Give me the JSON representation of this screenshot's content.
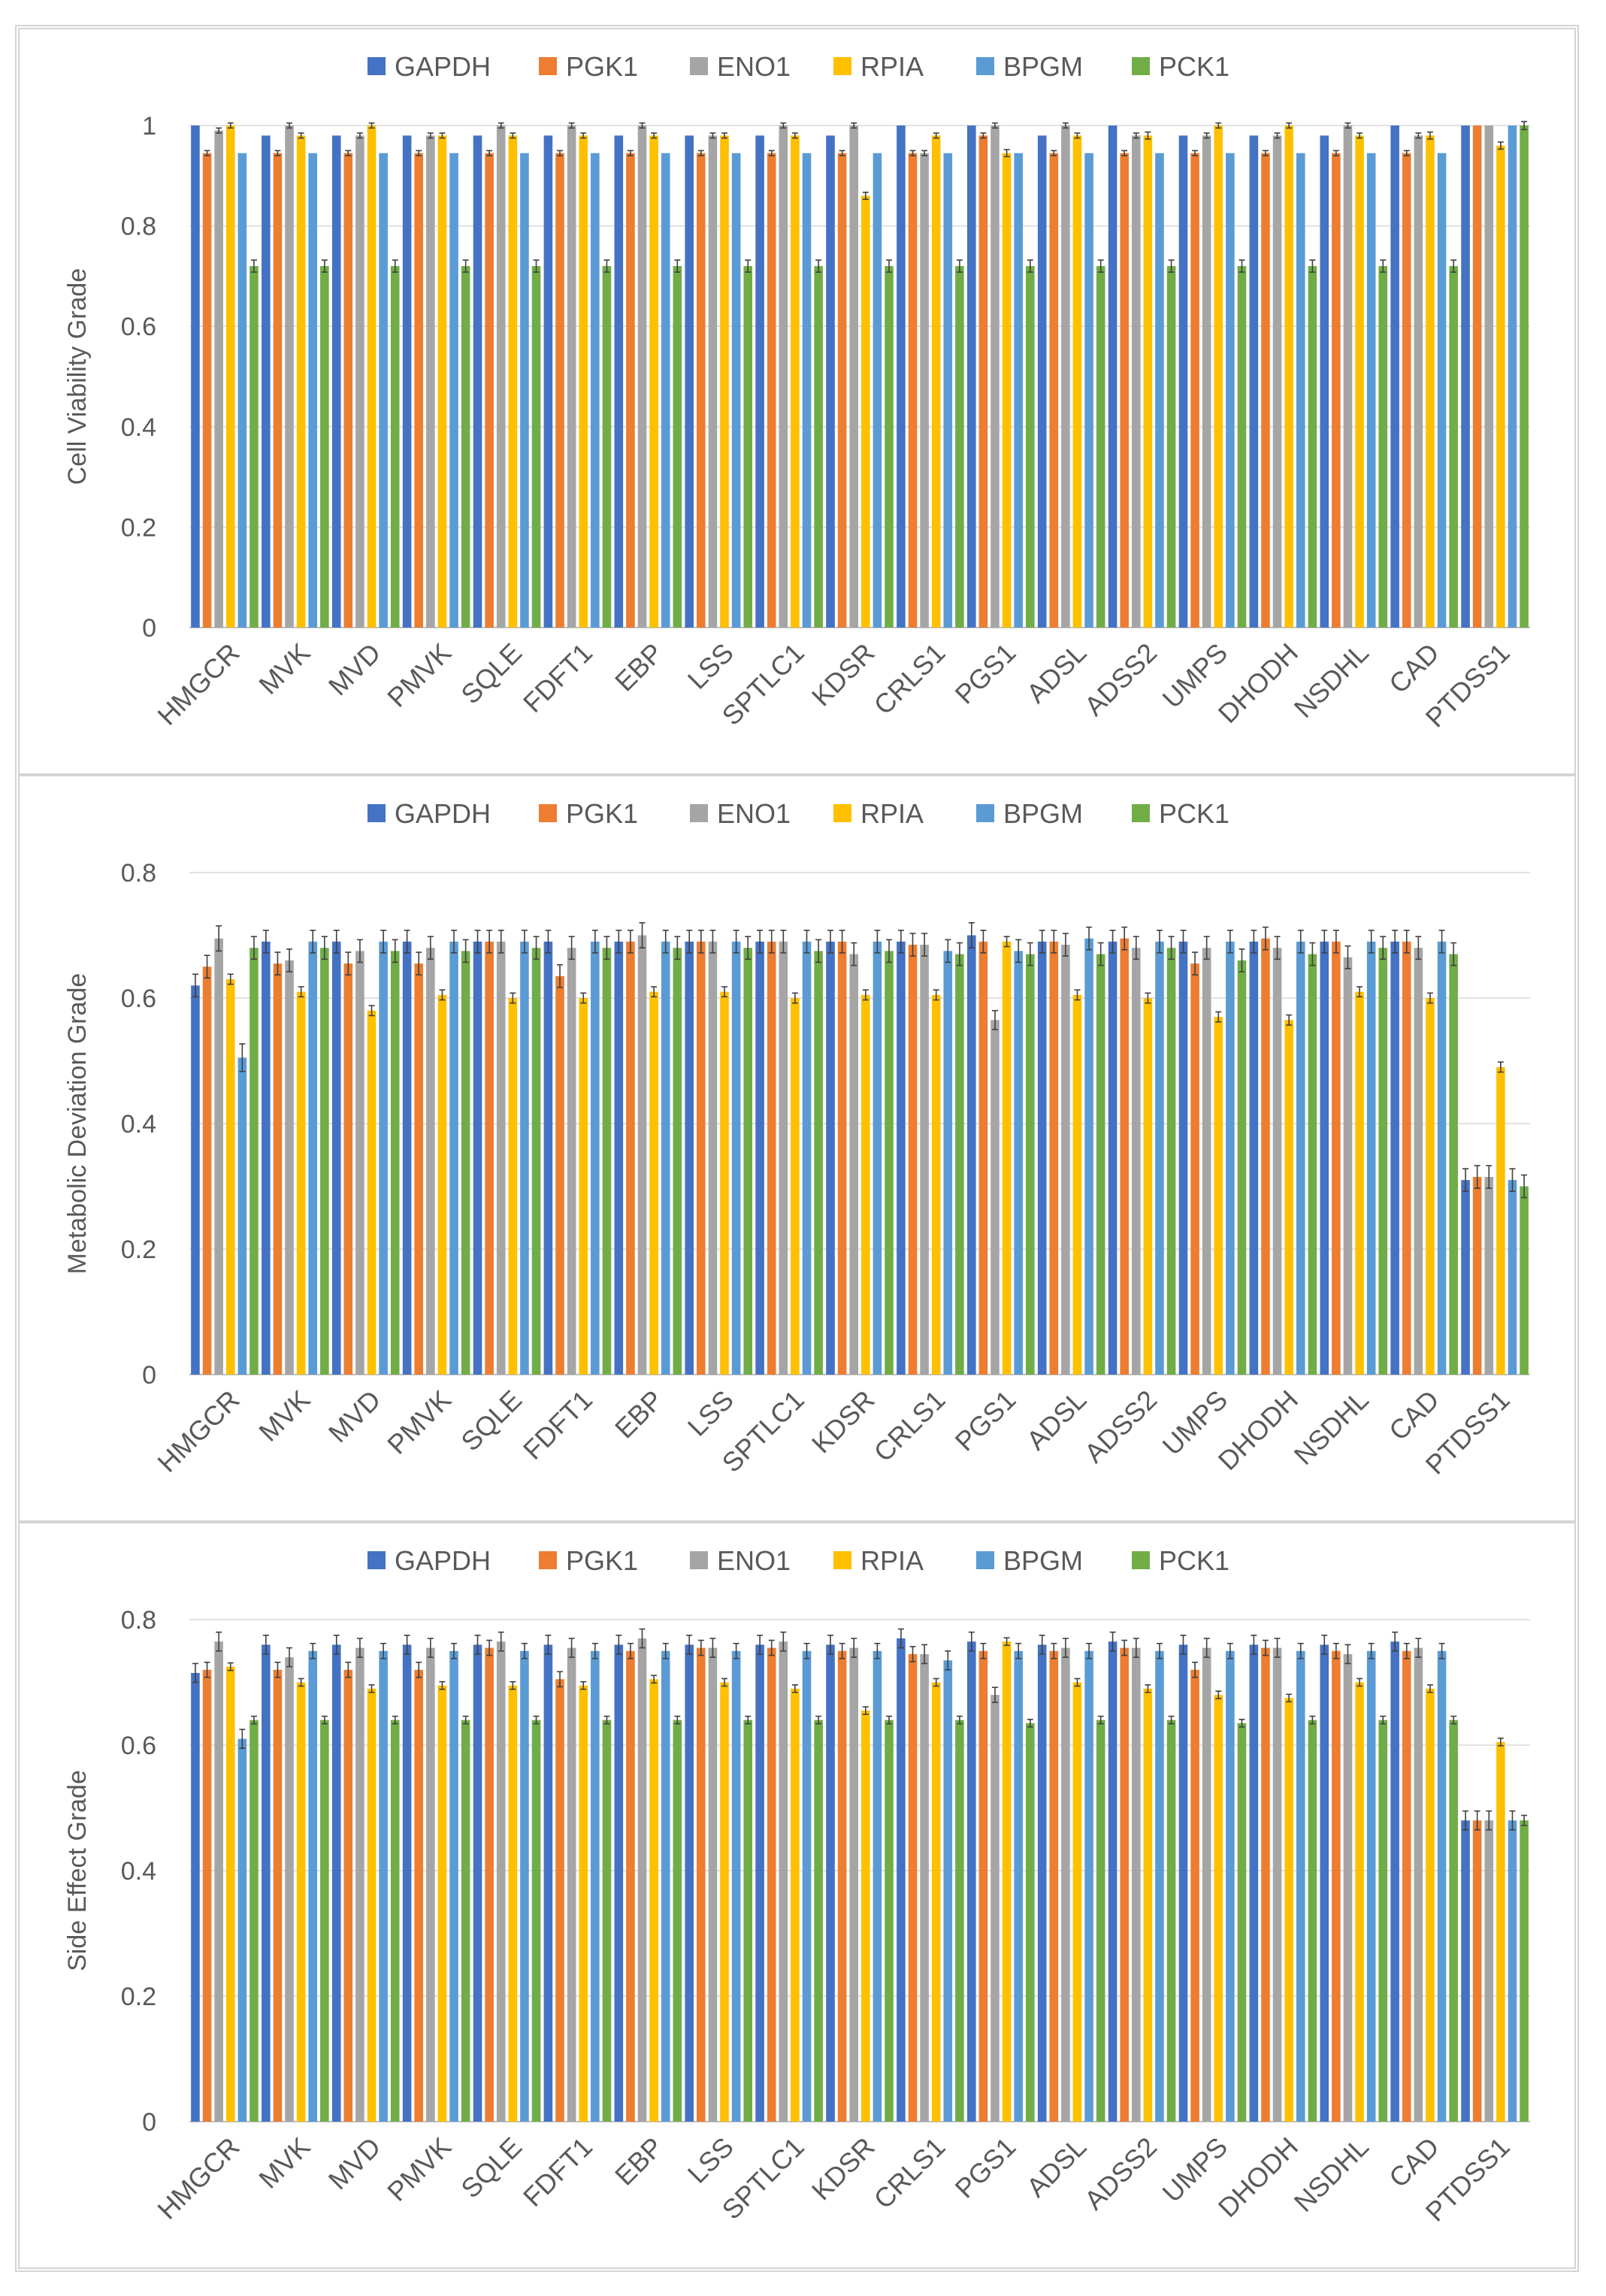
{
  "colors": {
    "GAPDH": "#4472C4",
    "PGK1": "#ED7D31",
    "ENO1": "#A5A5A5",
    "RPIA": "#FFC000",
    "BPGM": "#5B9BD5",
    "PCK1": "#70AD47",
    "grid": "#d9d9d9",
    "axis_text": "#595959"
  },
  "chart_data": [
    {
      "type": "bar",
      "title": "",
      "xlabel": "",
      "ylabel": "Cell Viability Grade",
      "ylim": [
        0,
        1
      ],
      "yticks": [
        0,
        0.2,
        0.4,
        0.6,
        0.8,
        1
      ],
      "ytick_labels": [
        "0",
        "0.2",
        "0.4",
        "0.6",
        "0.8",
        "1"
      ],
      "legend_position": "top-center",
      "grid": true,
      "categories": [
        "HMGCR",
        "MVK",
        "MVD",
        "PMVK",
        "SQLE",
        "FDFT1",
        "EBP",
        "LSS",
        "SPTLC1",
        "KDSR",
        "CRLS1",
        "PGS1",
        "ADSL",
        "ADSS2",
        "UMPS",
        "DHODH",
        "NSDHL",
        "CAD",
        "PTDSS1"
      ],
      "series": [
        {
          "name": "GAPDH",
          "values": [
            1,
            0.98,
            0.98,
            0.98,
            0.98,
            0.98,
            0.98,
            0.98,
            0.98,
            0.98,
            1,
            1,
            0.98,
            1,
            0.98,
            0.98,
            0.98,
            1,
            1
          ],
          "errors": [
            0,
            0,
            0,
            0,
            0,
            0,
            0,
            0,
            0,
            0,
            0,
            0,
            0,
            0,
            0,
            0,
            0,
            0,
            0
          ]
        },
        {
          "name": "PGK1",
          "values": [
            0.945,
            0.945,
            0.945,
            0.945,
            0.945,
            0.945,
            0.945,
            0.945,
            0.945,
            0.945,
            0.945,
            0.98,
            0.945,
            0.945,
            0.945,
            0.945,
            0.945,
            0.945,
            1
          ],
          "errors": [
            0.005,
            0.005,
            0.005,
            0.005,
            0.005,
            0.005,
            0.005,
            0.005,
            0.005,
            0.005,
            0.005,
            0.005,
            0.005,
            0.005,
            0.005,
            0.005,
            0.005,
            0.005,
            0
          ]
        },
        {
          "name": "ENO1",
          "values": [
            0.99,
            1,
            0.98,
            0.98,
            1,
            1,
            1,
            0.98,
            1,
            1,
            0.945,
            1,
            1,
            0.98,
            0.98,
            0.98,
            1,
            0.98,
            1
          ],
          "errors": [
            0.005,
            0.005,
            0.005,
            0.005,
            0.005,
            0.005,
            0.005,
            0.005,
            0.005,
            0.005,
            0.005,
            0.005,
            0.005,
            0.005,
            0.005,
            0.005,
            0.005,
            0.005,
            0
          ]
        },
        {
          "name": "RPIA",
          "values": [
            1,
            0.98,
            1,
            0.98,
            0.98,
            0.98,
            0.98,
            0.98,
            0.98,
            0.86,
            0.98,
            0.945,
            0.98,
            0.98,
            1,
            1,
            0.98,
            0.98,
            0.96
          ],
          "errors": [
            0.005,
            0.005,
            0.005,
            0.005,
            0.005,
            0.005,
            0.005,
            0.005,
            0.005,
            0.007,
            0.005,
            0.007,
            0.005,
            0.007,
            0.005,
            0.005,
            0.005,
            0.007,
            0.007
          ]
        },
        {
          "name": "BPGM",
          "values": [
            0.945,
            0.945,
            0.945,
            0.945,
            0.945,
            0.945,
            0.945,
            0.945,
            0.945,
            0.945,
            0.945,
            0.945,
            0.945,
            0.945,
            0.945,
            0.945,
            0.945,
            0.945,
            1
          ],
          "errors": [
            0,
            0,
            0,
            0,
            0,
            0,
            0,
            0,
            0,
            0,
            0,
            0,
            0,
            0,
            0,
            0,
            0,
            0,
            0
          ]
        },
        {
          "name": "PCK1",
          "values": [
            0.72,
            0.72,
            0.72,
            0.72,
            0.72,
            0.72,
            0.72,
            0.72,
            0.72,
            0.72,
            0.72,
            0.72,
            0.72,
            0.72,
            0.72,
            0.72,
            0.72,
            0.72,
            1
          ],
          "errors": [
            0.012,
            0.012,
            0.012,
            0.012,
            0.012,
            0.012,
            0.012,
            0.012,
            0.012,
            0.012,
            0.012,
            0.012,
            0.012,
            0.012,
            0.012,
            0.012,
            0.012,
            0.012,
            0.008
          ]
        }
      ]
    },
    {
      "type": "bar",
      "title": "",
      "xlabel": "",
      "ylabel": "Metabolic Deviation Grade",
      "ylim": [
        0,
        0.8
      ],
      "yticks": [
        0,
        0.2,
        0.4,
        0.6,
        0.8
      ],
      "ytick_labels": [
        "0",
        "0.2",
        "0.4",
        "0.6",
        "0.8"
      ],
      "legend_position": "top-center",
      "grid": true,
      "categories": [
        "HMGCR",
        "MVK",
        "MVD",
        "PMVK",
        "SQLE",
        "FDFT1",
        "EBP",
        "LSS",
        "SPTLC1",
        "KDSR",
        "CRLS1",
        "PGS1",
        "ADSL",
        "ADSS2",
        "UMPS",
        "DHODH",
        "NSDHL",
        "CAD",
        "PTDSS1"
      ],
      "series": [
        {
          "name": "GAPDH",
          "values": [
            0.62,
            0.69,
            0.69,
            0.69,
            0.69,
            0.69,
            0.69,
            0.69,
            0.69,
            0.69,
            0.69,
            0.7,
            0.69,
            0.69,
            0.69,
            0.69,
            0.69,
            0.69,
            0.31
          ],
          "errors": [
            0.018,
            0.018,
            0.018,
            0.018,
            0.018,
            0.018,
            0.018,
            0.018,
            0.018,
            0.018,
            0.018,
            0.02,
            0.018,
            0.018,
            0.018,
            0.018,
            0.018,
            0.018,
            0.018
          ]
        },
        {
          "name": "PGK1",
          "values": [
            0.65,
            0.655,
            0.655,
            0.655,
            0.69,
            0.635,
            0.69,
            0.69,
            0.69,
            0.69,
            0.685,
            0.69,
            0.69,
            0.695,
            0.655,
            0.695,
            0.69,
            0.69,
            0.315
          ],
          "errors": [
            0.018,
            0.018,
            0.018,
            0.018,
            0.018,
            0.018,
            0.018,
            0.018,
            0.018,
            0.018,
            0.018,
            0.018,
            0.018,
            0.018,
            0.018,
            0.018,
            0.018,
            0.018,
            0.018
          ]
        },
        {
          "name": "ENO1",
          "values": [
            0.695,
            0.66,
            0.675,
            0.68,
            0.69,
            0.68,
            0.7,
            0.69,
            0.69,
            0.67,
            0.685,
            0.565,
            0.685,
            0.68,
            0.68,
            0.68,
            0.665,
            0.68,
            0.315
          ],
          "errors": [
            0.02,
            0.018,
            0.018,
            0.018,
            0.018,
            0.018,
            0.02,
            0.018,
            0.018,
            0.018,
            0.018,
            0.015,
            0.018,
            0.018,
            0.018,
            0.018,
            0.018,
            0.018,
            0.018
          ]
        },
        {
          "name": "RPIA",
          "values": [
            0.63,
            0.61,
            0.58,
            0.605,
            0.6,
            0.6,
            0.61,
            0.61,
            0.6,
            0.605,
            0.605,
            0.69,
            0.605,
            0.6,
            0.57,
            0.565,
            0.61,
            0.6,
            0.49
          ],
          "errors": [
            0.008,
            0.008,
            0.008,
            0.008,
            0.008,
            0.008,
            0.008,
            0.008,
            0.008,
            0.008,
            0.008,
            0.008,
            0.008,
            0.008,
            0.008,
            0.008,
            0.008,
            0.008,
            0.008
          ]
        },
        {
          "name": "BPGM",
          "values": [
            0.505,
            0.69,
            0.69,
            0.69,
            0.69,
            0.69,
            0.69,
            0.69,
            0.69,
            0.69,
            0.675,
            0.675,
            0.695,
            0.69,
            0.69,
            0.69,
            0.69,
            0.69,
            0.31
          ],
          "errors": [
            0.022,
            0.018,
            0.018,
            0.018,
            0.018,
            0.018,
            0.018,
            0.018,
            0.018,
            0.018,
            0.018,
            0.018,
            0.018,
            0.018,
            0.018,
            0.018,
            0.018,
            0.018,
            0.018
          ]
        },
        {
          "name": "PCK1",
          "values": [
            0.68,
            0.68,
            0.675,
            0.675,
            0.68,
            0.68,
            0.68,
            0.68,
            0.675,
            0.675,
            0.67,
            0.67,
            0.67,
            0.68,
            0.66,
            0.67,
            0.68,
            0.67,
            0.3
          ],
          "errors": [
            0.018,
            0.018,
            0.018,
            0.018,
            0.018,
            0.018,
            0.018,
            0.018,
            0.018,
            0.018,
            0.018,
            0.018,
            0.018,
            0.018,
            0.018,
            0.018,
            0.018,
            0.018,
            0.018
          ]
        }
      ]
    },
    {
      "type": "bar",
      "title": "",
      "xlabel": "",
      "ylabel": "Side Effect Grade",
      "ylim": [
        0,
        0.8
      ],
      "yticks": [
        0,
        0.2,
        0.4,
        0.6,
        0.8
      ],
      "ytick_labels": [
        "0",
        "0.2",
        "0.4",
        "0.6",
        "0.8"
      ],
      "legend_position": "top-center",
      "grid": true,
      "categories": [
        "HMGCR",
        "MVK",
        "MVD",
        "PMVK",
        "SQLE",
        "FDFT1",
        "EBP",
        "LSS",
        "SPTLC1",
        "KDSR",
        "CRLS1",
        "PGS1",
        "ADSL",
        "ADSS2",
        "UMPS",
        "DHODH",
        "NSDHL",
        "CAD",
        "PTDSS1"
      ],
      "series": [
        {
          "name": "GAPDH",
          "values": [
            0.715,
            0.76,
            0.76,
            0.76,
            0.76,
            0.76,
            0.76,
            0.76,
            0.76,
            0.76,
            0.77,
            0.765,
            0.76,
            0.765,
            0.76,
            0.76,
            0.76,
            0.765,
            0.48
          ],
          "errors": [
            0.015,
            0.015,
            0.015,
            0.015,
            0.015,
            0.015,
            0.015,
            0.015,
            0.015,
            0.015,
            0.015,
            0.015,
            0.015,
            0.015,
            0.015,
            0.015,
            0.015,
            0.015,
            0.015
          ]
        },
        {
          "name": "PGK1",
          "values": [
            0.72,
            0.72,
            0.72,
            0.72,
            0.755,
            0.705,
            0.75,
            0.755,
            0.755,
            0.75,
            0.745,
            0.75,
            0.75,
            0.755,
            0.72,
            0.755,
            0.75,
            0.75,
            0.48
          ],
          "errors": [
            0.012,
            0.012,
            0.012,
            0.012,
            0.012,
            0.012,
            0.012,
            0.012,
            0.012,
            0.012,
            0.012,
            0.012,
            0.012,
            0.012,
            0.012,
            0.012,
            0.012,
            0.012,
            0.015
          ]
        },
        {
          "name": "ENO1",
          "values": [
            0.765,
            0.74,
            0.755,
            0.755,
            0.765,
            0.755,
            0.77,
            0.755,
            0.765,
            0.755,
            0.745,
            0.68,
            0.755,
            0.755,
            0.755,
            0.755,
            0.745,
            0.755,
            0.48
          ],
          "errors": [
            0.015,
            0.015,
            0.015,
            0.015,
            0.015,
            0.015,
            0.015,
            0.015,
            0.015,
            0.015,
            0.015,
            0.012,
            0.015,
            0.015,
            0.015,
            0.015,
            0.015,
            0.015,
            0.015
          ]
        },
        {
          "name": "RPIA",
          "values": [
            0.725,
            0.7,
            0.69,
            0.695,
            0.695,
            0.695,
            0.705,
            0.7,
            0.69,
            0.655,
            0.7,
            0.765,
            0.7,
            0.69,
            0.68,
            0.675,
            0.7,
            0.69,
            0.605
          ],
          "errors": [
            0.006,
            0.006,
            0.006,
            0.006,
            0.006,
            0.006,
            0.006,
            0.006,
            0.006,
            0.006,
            0.006,
            0.006,
            0.006,
            0.006,
            0.006,
            0.006,
            0.006,
            0.006,
            0.006
          ]
        },
        {
          "name": "BPGM",
          "values": [
            0.61,
            0.75,
            0.75,
            0.75,
            0.75,
            0.75,
            0.75,
            0.75,
            0.75,
            0.75,
            0.735,
            0.75,
            0.75,
            0.75,
            0.75,
            0.75,
            0.75,
            0.75,
            0.48
          ],
          "errors": [
            0.015,
            0.012,
            0.012,
            0.012,
            0.012,
            0.012,
            0.012,
            0.012,
            0.012,
            0.012,
            0.015,
            0.012,
            0.012,
            0.012,
            0.012,
            0.012,
            0.012,
            0.012,
            0.015
          ]
        },
        {
          "name": "PCK1",
          "values": [
            0.64,
            0.64,
            0.64,
            0.64,
            0.64,
            0.64,
            0.64,
            0.64,
            0.64,
            0.64,
            0.64,
            0.635,
            0.64,
            0.64,
            0.635,
            0.64,
            0.64,
            0.64,
            0.48
          ],
          "errors": [
            0.006,
            0.006,
            0.006,
            0.006,
            0.006,
            0.006,
            0.006,
            0.006,
            0.006,
            0.006,
            0.006,
            0.006,
            0.006,
            0.006,
            0.006,
            0.006,
            0.006,
            0.006,
            0.008
          ]
        }
      ]
    }
  ]
}
